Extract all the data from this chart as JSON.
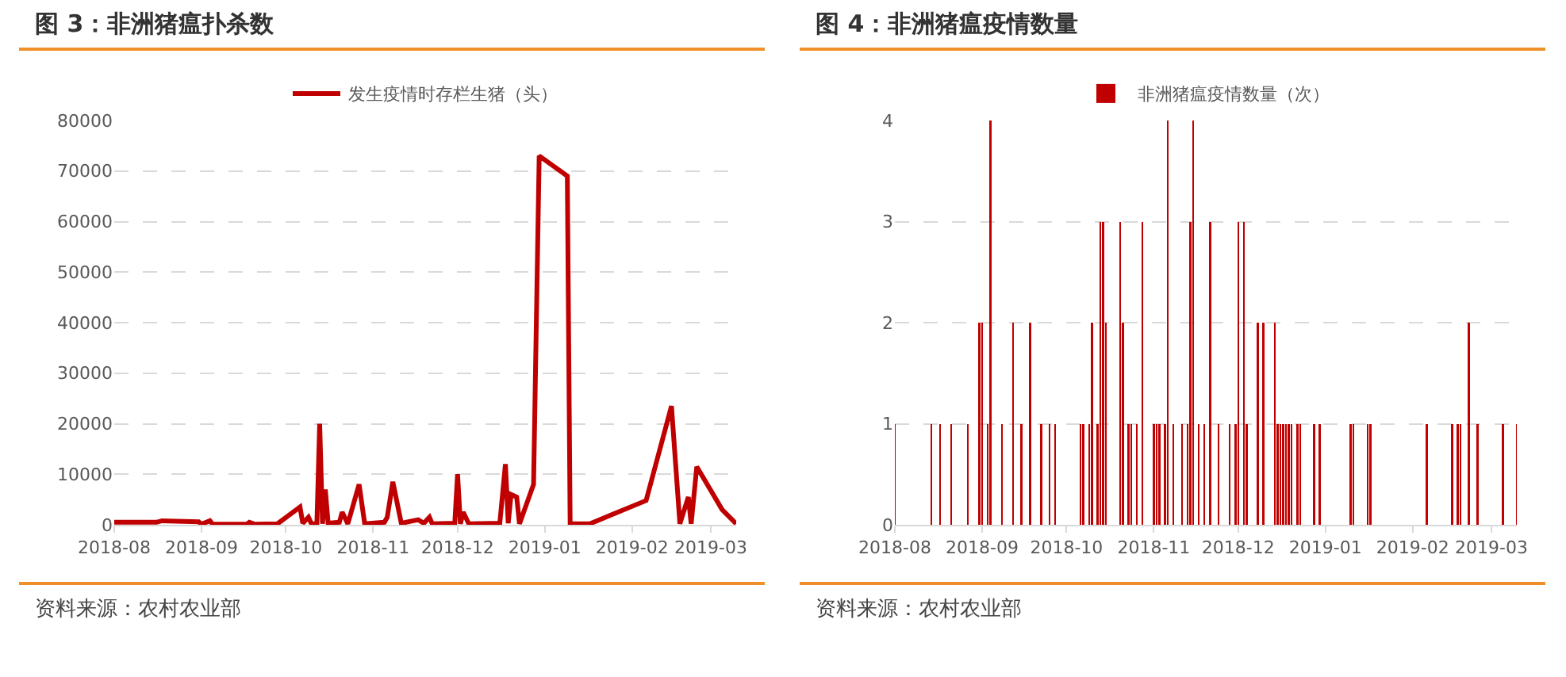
{
  "chart_data": [
    {
      "type": "line",
      "title": "图 3：非洲猪瘟扑杀数",
      "annotations": [
        "资料来源：农村农业部"
      ],
      "x": [
        "2018-08-01",
        "2018-08-16",
        "2018-08-18",
        "2018-08-31",
        "2018-09-01",
        "2018-09-04",
        "2018-09-05",
        "2018-09-17",
        "2018-09-18",
        "2018-09-20",
        "2018-09-28",
        "2018-10-06",
        "2018-10-07",
        "2018-10-09",
        "2018-10-10",
        "2018-10-12",
        "2018-10-13",
        "2018-10-14",
        "2018-10-15",
        "2018-10-16",
        "2018-10-20",
        "2018-10-21",
        "2018-10-23",
        "2018-10-27",
        "2018-10-29",
        "2018-11-05",
        "2018-11-06",
        "2018-11-07",
        "2018-11-08",
        "2018-11-11",
        "2018-11-17",
        "2018-11-19",
        "2018-11-21",
        "2018-11-22",
        "2018-11-30",
        "2018-12-01",
        "2018-12-02",
        "2018-12-03",
        "2018-12-05",
        "2018-12-16",
        "2018-12-18",
        "2018-12-19",
        "2018-12-20",
        "2018-12-22",
        "2018-12-23",
        "2018-12-28",
        "2018-12-30",
        "2019-01-09",
        "2019-01-10",
        "2019-01-17",
        "2019-02-06",
        "2019-02-15",
        "2019-02-18",
        "2019-02-21",
        "2019-02-22",
        "2019-02-24",
        "2019-03-05",
        "2019-03-10"
      ],
      "series": [
        {
          "name": "发生疫情时存栏生猪（头）",
          "color": "#c00000",
          "values": [
            500,
            500,
            800,
            600,
            100,
            800,
            100,
            100,
            500,
            100,
            200,
            3500,
            300,
            1500,
            300,
            100,
            20000,
            200,
            7000,
            300,
            500,
            2500,
            200,
            8000,
            200,
            500,
            1500,
            5000,
            8500,
            300,
            1000,
            300,
            1500,
            200,
            300,
            10000,
            200,
            2500,
            200,
            300,
            12000,
            300,
            6000,
            5500,
            200,
            8000,
            73000,
            69000,
            200,
            200,
            4800,
            23500,
            200,
            5500,
            200,
            11500,
            3000,
            200
          ]
        }
      ],
      "xlim": [
        "2018-08-01",
        "2019-03-10"
      ],
      "xticks": [
        "2018-08",
        "2018-09",
        "2018-10",
        "2018-11",
        "2018-12",
        "2019-01",
        "2019-02",
        "2019-03"
      ],
      "ylim": [
        0,
        80000
      ],
      "yticks": [
        0,
        10000,
        20000,
        30000,
        40000,
        50000,
        60000,
        70000,
        80000
      ],
      "grid": "y",
      "legend": "top"
    },
    {
      "type": "bar",
      "title": "图 4：非洲猪瘟疫情数量",
      "annotations": [
        "资料来源：农村农业部"
      ],
      "x": [
        "2018-08-01",
        "2018-08-14",
        "2018-08-17",
        "2018-08-21",
        "2018-08-27",
        "2018-08-31",
        "2018-09-01",
        "2018-09-03",
        "2018-09-04",
        "2018-09-08",
        "2018-09-12",
        "2018-09-15",
        "2018-09-18",
        "2018-09-22",
        "2018-09-25",
        "2018-09-27",
        "2018-10-06",
        "2018-10-07",
        "2018-10-09",
        "2018-10-10",
        "2018-10-12",
        "2018-10-13",
        "2018-10-14",
        "2018-10-15",
        "2018-10-20",
        "2018-10-21",
        "2018-10-23",
        "2018-10-24",
        "2018-10-26",
        "2018-10-28",
        "2018-11-01",
        "2018-11-02",
        "2018-11-03",
        "2018-11-05",
        "2018-11-06",
        "2018-11-08",
        "2018-11-11",
        "2018-11-13",
        "2018-11-14",
        "2018-11-15",
        "2018-11-17",
        "2018-11-19",
        "2018-11-21",
        "2018-11-24",
        "2018-11-28",
        "2018-11-30",
        "2018-12-01",
        "2018-12-03",
        "2018-12-04",
        "2018-12-08",
        "2018-12-10",
        "2018-12-14",
        "2018-12-15",
        "2018-12-16",
        "2018-12-17",
        "2018-12-18",
        "2018-12-19",
        "2018-12-20",
        "2018-12-22",
        "2018-12-23",
        "2018-12-28",
        "2018-12-30",
        "2019-01-10",
        "2019-01-11",
        "2019-01-16",
        "2019-01-17",
        "2019-02-06",
        "2019-02-15",
        "2019-02-17",
        "2019-02-18",
        "2019-02-21",
        "2019-02-24",
        "2019-03-05",
        "2019-03-10"
      ],
      "series": [
        {
          "name": "非洲猪瘟疫情数量（次）",
          "color": "#c00000",
          "values": [
            1,
            1,
            1,
            1,
            1,
            2,
            2,
            1,
            4,
            1,
            2,
            1,
            2,
            1,
            1,
            1,
            1,
            1,
            1,
            2,
            1,
            3,
            3,
            2,
            3,
            2,
            1,
            1,
            1,
            3,
            1,
            1,
            1,
            1,
            4,
            1,
            1,
            1,
            3,
            4,
            1,
            1,
            3,
            1,
            1,
            1,
            3,
            3,
            1,
            2,
            2,
            2,
            1,
            1,
            1,
            1,
            1,
            1,
            1,
            1,
            1,
            1,
            1,
            1,
            1,
            1,
            1,
            1,
            1,
            1,
            2,
            1,
            1,
            1
          ]
        }
      ],
      "xlim": [
        "2018-08-01",
        "2019-03-10"
      ],
      "xticks": [
        "2018-08",
        "2018-09",
        "2018-10",
        "2018-11",
        "2018-12",
        "2019-01",
        "2019-02",
        "2019-03"
      ],
      "ylim": [
        0,
        4
      ],
      "yticks": [
        0,
        1,
        2,
        3,
        4
      ],
      "grid": "y",
      "legend": "top"
    }
  ]
}
